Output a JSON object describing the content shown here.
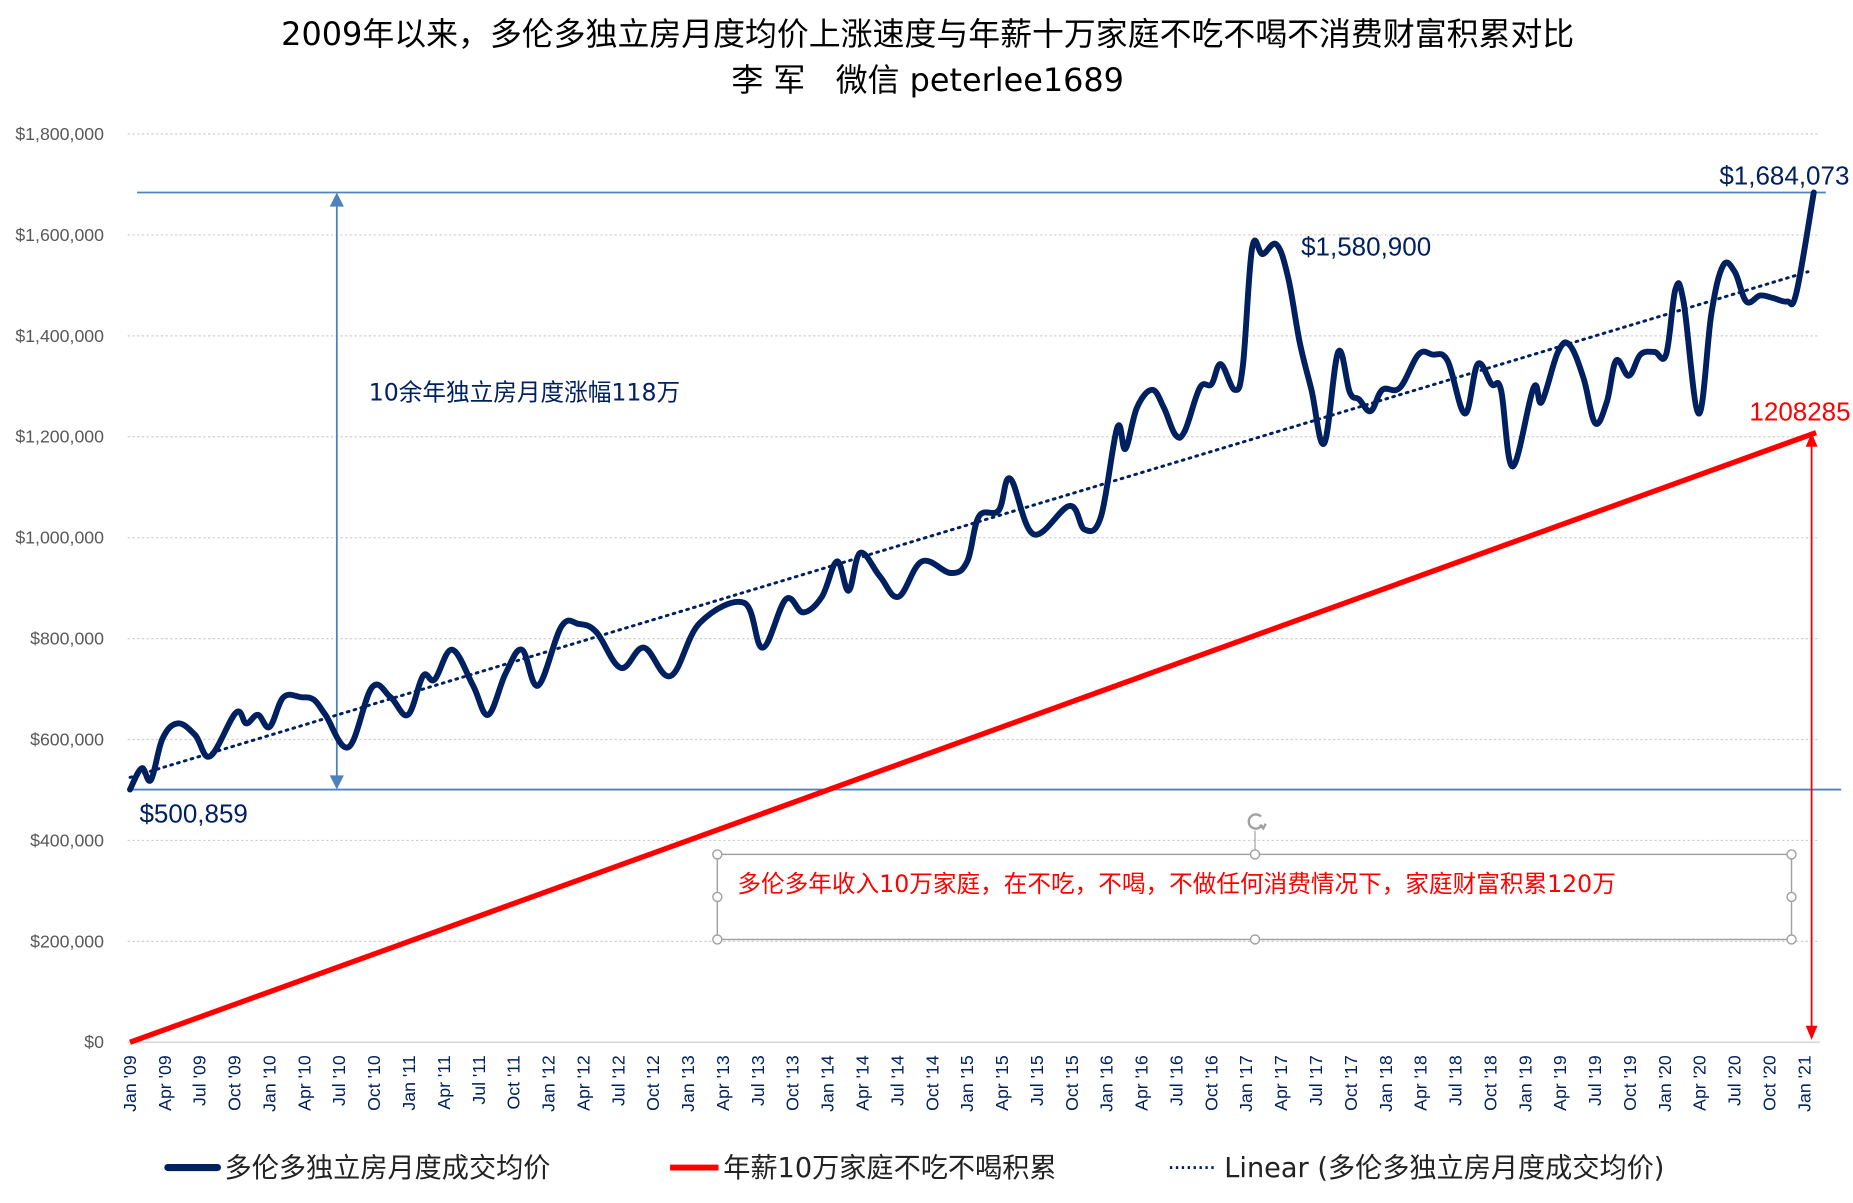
{
  "chart_data": {
    "type": "line",
    "title": "2009年以来，多伦多独立房月度均价上涨速度与年薪十万家庭不吃不喝不消费财富积累对比",
    "subtitle": "李 军   微信 peterlee1689",
    "xlabel": "",
    "ylabel": "",
    "ylim": [
      0,
      1800000
    ],
    "yticks": [
      0,
      200000,
      400000,
      600000,
      800000,
      1000000,
      1200000,
      1400000,
      1600000,
      1800000
    ],
    "ytick_labels": [
      "$0",
      "$200,000",
      "$400,000",
      "$600,000",
      "$800,000",
      "$1,000,000",
      "$1,200,000",
      "$1,400,000",
      "$1,600,000",
      "$1,800,000"
    ],
    "x_unit": "months since Jan 2009",
    "xtick_labels": [
      "Jan '09",
      "Apr '09",
      "Jul '09",
      "Oct '09",
      "Jan '10",
      "Apr '10",
      "Jul '10",
      "Oct '10",
      "Jan '11",
      "Apr '11",
      "Jul '11",
      "Oct '11",
      "Jan '12",
      "Apr '12",
      "Jul '12",
      "Oct '12",
      "Jan '13",
      "Apr '13",
      "Jul '13",
      "Oct '13",
      "Jan '14",
      "Apr '14",
      "Jul '14",
      "Oct '14",
      "Jan '15",
      "Apr '15",
      "Jul '15",
      "Oct '15",
      "Jan '16",
      "Apr '16",
      "Jul '16",
      "Oct '16",
      "Jan '17",
      "Apr '17",
      "Jul '17",
      "Oct '17",
      "Jan '18",
      "Apr '18",
      "Jul '18",
      "Oct '18",
      "Jan '19",
      "Apr '19",
      "Jul '19",
      "Oct '19",
      "Jan '20",
      "Apr '20",
      "Jul '20",
      "Oct '20",
      "Jan '21"
    ],
    "grid": true,
    "legend_position": "bottom",
    "series": [
      {
        "name": "多伦多独立房月度成交均价",
        "color": "#002060",
        "x": [
          0,
          1,
          1.8,
          2.8,
          4.1,
          5.6,
          6.9,
          9.1,
          10,
          11,
          12,
          13.2,
          14.7,
          15.8,
          16.8,
          18.8,
          20.8,
          22.4,
          23.9,
          25.2,
          26.2,
          27.7,
          29.5,
          30.8,
          32.3,
          33.7,
          35.1,
          37.1,
          38.6,
          40.1,
          42.2,
          44.2,
          46.5,
          49,
          52.8,
          54.4,
          56.4,
          57.9,
          59.5,
          60.8,
          61.8,
          62.8,
          64.5,
          66.1,
          68.1,
          70.6,
          72,
          73,
          74.7,
          75.7,
          77.7,
          80.8,
          82.1,
          83.5,
          84.9,
          85.6,
          86.6,
          87.9,
          88.9,
          89.9,
          90.7,
          92,
          93,
          93.8,
          95,
          95.7,
          96.5,
          97.4,
          98.6,
          99.6,
          100.6,
          101.6,
          102.7,
          103.9,
          104.9,
          105.7,
          106.7,
          107.7,
          109.2,
          110.8,
          112,
          113.3,
          114.8,
          115.9,
          117.1,
          117.9,
          118.9,
          120.7,
          121.4,
          122.8,
          123.8,
          125,
          126,
          127,
          127.8,
          128.9,
          129.9,
          131.1,
          132.1,
          132.9,
          133.6,
          134.9,
          136,
          137,
          138,
          139,
          140.2,
          141.3,
          142.5,
          143.3,
          144.8
        ],
        "values": [
          500859,
          543000,
          520000,
          602000,
          632000,
          609000,
          567000,
          653000,
          632000,
          649000,
          625000,
          684000,
          684000,
          679000,
          649000,
          585000,
          703000,
          684000,
          649000,
          726000,
          719000,
          778000,
          707000,
          649000,
          731000,
          778000,
          707000,
          824000,
          829000,
          813000,
          742000,
          782000,
          726000,
          831000,
          871000,
          782000,
          878000,
          852000,
          883000,
          953000,
          895000,
          970000,
          923000,
          883000,
          953000,
          930000,
          953000,
          1042000,
          1054000,
          1117000,
          1007000,
          1063000,
          1016000,
          1042000,
          1218000,
          1176000,
          1258000,
          1293000,
          1258000,
          1204000,
          1211000,
          1297000,
          1304000,
          1344000,
          1293000,
          1340000,
          1574000,
          1562000,
          1580900,
          1515000,
          1386000,
          1293000,
          1187000,
          1368000,
          1288000,
          1274000,
          1251000,
          1293000,
          1297000,
          1363000,
          1363000,
          1351000,
          1246000,
          1344000,
          1304000,
          1293000,
          1141000,
          1297000,
          1269000,
          1368000,
          1382000,
          1316000,
          1227000,
          1269000,
          1351000,
          1321000,
          1363000,
          1368000,
          1363000,
          1492000,
          1468000,
          1246000,
          1445000,
          1539000,
          1527000,
          1468000,
          1480000,
          1475000,
          1468000,
          1485000,
          1684073
        ]
      },
      {
        "name": "年薪10万家庭不吃不喝积累",
        "color": "#ff0000",
        "x": [
          0,
          145
        ],
        "values": [
          0,
          1208285
        ]
      },
      {
        "name": "Linear (多伦多独立房月度成交均价)",
        "color": "#002060",
        "style": "dotted",
        "x": [
          0,
          144.3
        ],
        "values": [
          525000,
          1527000
        ]
      }
    ],
    "annotations": {
      "start_label": "$500,859",
      "peak_label": "$1,580,900",
      "end_label": "$1,684,073",
      "red_end_label": "1208285",
      "rise_text": "10余年独立房月度涨幅118万",
      "box_text": "多伦多年收入10万家庭，在不吃，不喝，不做任何消费情况下，家庭财富积累120万",
      "start_value": 500859,
      "end_value": 1684073,
      "red_end_value": 1208285
    }
  },
  "legend": {
    "items": [
      "多伦多独立房月度成交均价",
      "年薪10万家庭不吃不喝积累",
      "Linear (多伦多独立房月度成交均价)"
    ]
  },
  "colors": {
    "navy": "#002060",
    "red": "#ff0000",
    "annot": "#4f81bd",
    "grid": "#d0d0d0"
  }
}
